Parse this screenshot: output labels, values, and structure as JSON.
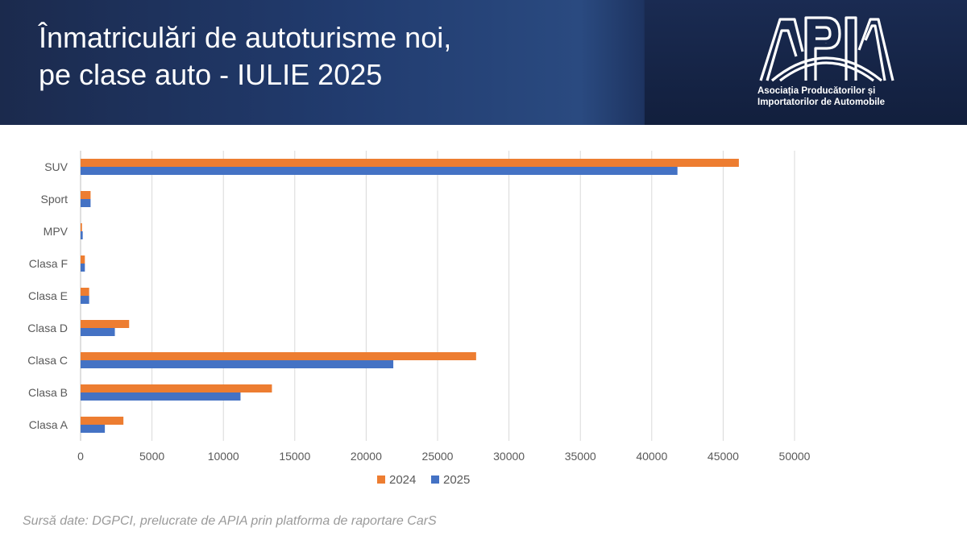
{
  "header": {
    "title_line1": "Înmatriculări de autoturisme noi,",
    "title_line2": "pe clase auto - IULIE 2025"
  },
  "logo": {
    "mark": "APIA",
    "line1": "Asociația Producătorilor și",
    "line2": "Importatorilor de Automobile"
  },
  "footer": {
    "source": "Sursă date: DGPCI, prelucrate de APIA prin platforma de raportare CarS"
  },
  "colors": {
    "series_2024": "#ed7d31",
    "series_2025": "#4472c4"
  },
  "chart_data": {
    "type": "bar",
    "orientation": "horizontal",
    "categories": [
      "SUV",
      "Sport",
      "MPV",
      "Clasa F",
      "Clasa E",
      "Clasa D",
      "Clasa C",
      "Clasa B",
      "Clasa A"
    ],
    "series": [
      {
        "name": "2024",
        "values": [
          46100,
          700,
          100,
          300,
          600,
          3400,
          27700,
          13400,
          3000
        ]
      },
      {
        "name": "2025",
        "values": [
          41800,
          700,
          150,
          300,
          600,
          2400,
          21900,
          11200,
          1700
        ]
      }
    ],
    "xlim": [
      0,
      50000
    ],
    "xticks": [
      "0",
      "5000",
      "10000",
      "15000",
      "20000",
      "25000",
      "30000",
      "35000",
      "40000",
      "45000",
      "50000"
    ],
    "grid": true,
    "legend_position": "bottom"
  }
}
